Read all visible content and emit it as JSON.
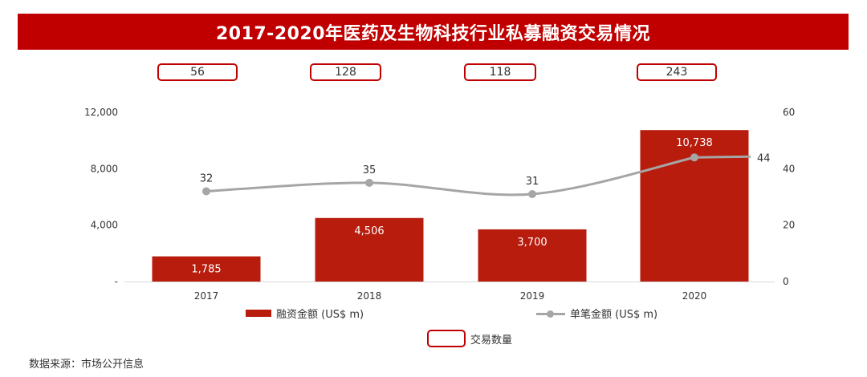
{
  "title": "2017-2020年医药及生物科技行业私募融资交易情况",
  "source": "数据来源：市场公开信息",
  "colors": {
    "title_bg": "#c00000",
    "bar": "#b71c0c",
    "line": "#a6a6a6",
    "box_border": "#c00000"
  },
  "legend": {
    "bar": "融资金额 (US$ m)",
    "line": "单笔金额 (US$ m)",
    "deals": "交易数量"
  },
  "chart_data": {
    "type": "bar",
    "categories": [
      "2017",
      "2018",
      "2019",
      "2020"
    ],
    "series": [
      {
        "name": "融资金额 (US$ m)",
        "type": "bar",
        "axis": "left",
        "values": [
          1785,
          4506,
          3700,
          10738
        ],
        "labels": [
          "1,785",
          "4,506",
          "3,700",
          "10,738"
        ]
      },
      {
        "name": "单笔金额 (US$ m)",
        "type": "line",
        "axis": "right",
        "values": [
          32,
          35,
          31,
          44
        ],
        "labels": [
          "32",
          "35",
          "31",
          "44"
        ]
      },
      {
        "name": "交易数量",
        "type": "box",
        "values": [
          56,
          128,
          118,
          243
        ],
        "labels": [
          "56",
          "128",
          "118",
          "243"
        ]
      }
    ],
    "y_left": {
      "range": [
        0,
        12000
      ],
      "ticks": [
        0,
        4000,
        8000,
        12000
      ],
      "tick_labels": [
        "-",
        "4,000",
        "8,000",
        "12,000"
      ]
    },
    "y_right": {
      "range": [
        0,
        60
      ],
      "ticks": [
        0,
        20,
        40,
        60
      ],
      "tick_labels": [
        "0",
        "20",
        "40",
        "60"
      ]
    },
    "grid": false,
    "legend_position": "bottom"
  }
}
